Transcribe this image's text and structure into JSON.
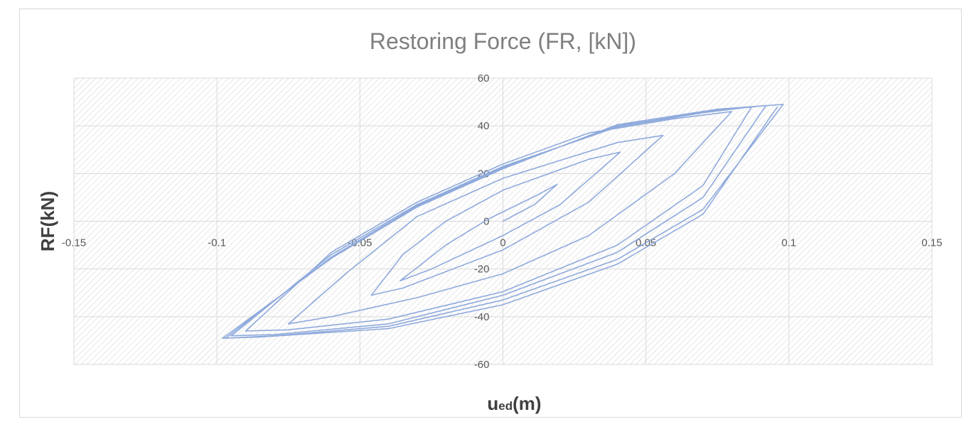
{
  "chart_data": {
    "type": "line",
    "title": "Restoring Force (FR, [kN])",
    "xlabel_main": "u",
    "xlabel_sub": "ed",
    "xlabel_unit": "(m)",
    "ylabel": "RF(kN)",
    "xlim": [
      -0.15,
      0.15
    ],
    "ylim": [
      -60,
      60
    ],
    "xticks": [
      -0.15,
      -0.1,
      -0.05,
      0,
      0.05,
      0.1,
      0.15
    ],
    "xtick_labels": [
      "-0.15",
      "-0.1",
      "-0.05",
      "0",
      "0.05",
      "0.1",
      "0.15"
    ],
    "yticks": [
      60,
      40,
      20,
      0,
      -20,
      -40,
      -60
    ],
    "ytick_labels": [
      "60",
      "40",
      "20",
      "0",
      "-20",
      "-40",
      "-60"
    ],
    "grid": true,
    "plot_background": "hatched",
    "line_color": "#8faadc",
    "series": [
      {
        "values": [
          [
            0.0,
            0.0
          ],
          [
            0.011,
            7.0
          ],
          [
            0.019,
            15.5
          ],
          [
            0.012,
            11.0
          ],
          [
            -0.005,
            1.0
          ],
          [
            -0.02,
            -10.0
          ],
          [
            -0.036,
            -25.0
          ],
          [
            -0.025,
            -20.0
          ],
          [
            0.0,
            -6.0
          ],
          [
            0.02,
            7.0
          ],
          [
            0.041,
            29.0
          ],
          [
            0.03,
            26.0
          ],
          [
            0.0,
            13.0
          ],
          [
            -0.02,
            0.0
          ],
          [
            -0.035,
            -14.0
          ],
          [
            -0.046,
            -31.0
          ],
          [
            -0.035,
            -28.0
          ],
          [
            0.0,
            -12.0
          ],
          [
            0.03,
            8.0
          ],
          [
            0.056,
            36.0
          ],
          [
            0.04,
            33.0
          ],
          [
            0.0,
            18.0
          ],
          [
            -0.03,
            2.0
          ],
          [
            -0.055,
            -22.0
          ],
          [
            -0.075,
            -43.0
          ],
          [
            -0.06,
            -40.0
          ],
          [
            -0.03,
            -32.0
          ],
          [
            0.0,
            -22.0
          ],
          [
            0.03,
            -6.0
          ],
          [
            0.06,
            20.0
          ],
          [
            0.08,
            46.0
          ],
          [
            0.06,
            43.0
          ],
          [
            0.03,
            37.0
          ],
          [
            0.0,
            24.0
          ],
          [
            -0.03,
            8.0
          ],
          [
            -0.06,
            -13.0
          ],
          [
            -0.09,
            -46.0
          ],
          [
            -0.075,
            -45.5
          ],
          [
            -0.04,
            -41.0
          ],
          [
            0.0,
            -29.5
          ],
          [
            0.04,
            -10.0
          ],
          [
            0.07,
            15.0
          ],
          [
            0.087,
            48.0
          ],
          [
            0.07,
            45.5
          ],
          [
            0.04,
            39.5
          ],
          [
            0.0,
            23.0
          ],
          [
            -0.03,
            7.0
          ],
          [
            -0.06,
            -14.0
          ],
          [
            -0.095,
            -48.0
          ],
          [
            -0.08,
            -47.5
          ],
          [
            -0.04,
            -43.0
          ],
          [
            0.0,
            -31.0
          ],
          [
            0.04,
            -13.0
          ],
          [
            0.07,
            10.0
          ],
          [
            0.092,
            48.5
          ],
          [
            0.075,
            46.5
          ],
          [
            0.04,
            40.0
          ],
          [
            0.0,
            22.5
          ],
          [
            -0.03,
            6.5
          ],
          [
            -0.06,
            -15.0
          ],
          [
            -0.097,
            -49.0
          ],
          [
            -0.08,
            -48.0
          ],
          [
            -0.04,
            -44.0
          ],
          [
            0.0,
            -33.0
          ],
          [
            0.04,
            -16.0
          ],
          [
            0.07,
            5.0
          ],
          [
            0.098,
            49.0
          ],
          [
            0.075,
            47.0
          ],
          [
            0.04,
            40.5
          ],
          [
            0.0,
            22.0
          ],
          [
            -0.03,
            6.0
          ],
          [
            -0.06,
            -15.5
          ],
          [
            -0.098,
            -49.0
          ],
          [
            -0.085,
            -48.5
          ],
          [
            -0.04,
            -45.0
          ],
          [
            0.0,
            -35.0
          ],
          [
            0.04,
            -18.0
          ],
          [
            0.07,
            3.0
          ],
          [
            0.096,
            48.0
          ]
        ]
      }
    ]
  }
}
